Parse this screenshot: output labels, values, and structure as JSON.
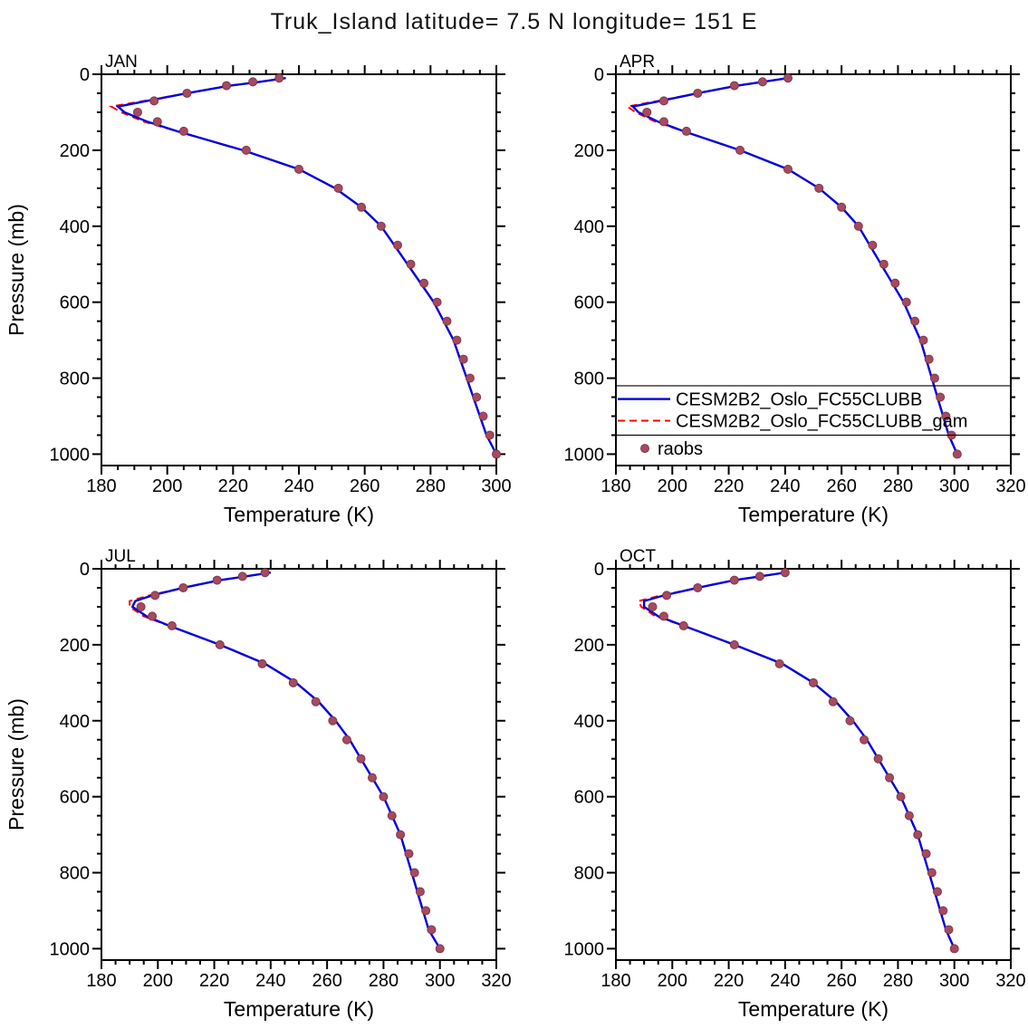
{
  "title": "Truk_Island   latitude= 7.5 N longitude= 151 E",
  "colors": {
    "model_solid": "#0000DC",
    "model_dashed": "#FF0000",
    "raobs": "#A64A5F",
    "raobs_edge": "#7E3748",
    "axis": "#000000"
  },
  "legend": {
    "entries": [
      {
        "label": "CESM2B2_Oslo_FC55CLUBB",
        "style": "solid"
      },
      {
        "label": "CESM2B2_Oslo_FC55CLUBB_gam",
        "style": "dashed"
      },
      {
        "label": "raobs",
        "style": "dot"
      }
    ]
  },
  "chart_data": [
    {
      "type": "line",
      "label": "JAN",
      "xlabel": "Temperature (K)",
      "ylabel": "Pressure (mb)",
      "xlim": [
        180,
        300
      ],
      "xticks": [
        180,
        200,
        220,
        240,
        260,
        280,
        300
      ],
      "ylim": [
        0,
        1030
      ],
      "yticks": [
        0,
        200,
        400,
        600,
        800,
        1000
      ],
      "has_legend": false,
      "levels_model": [
        10,
        20,
        30,
        50,
        70,
        85,
        100,
        125,
        150,
        175,
        200,
        250,
        300,
        350,
        400,
        450,
        500,
        550,
        600,
        650,
        700,
        750,
        800,
        850,
        900,
        950,
        1000
      ],
      "levels_raobs": [
        10,
        20,
        30,
        50,
        70,
        100,
        125,
        150,
        200,
        250,
        300,
        350,
        400,
        450,
        500,
        550,
        600,
        650,
        700,
        750,
        800,
        850,
        900,
        950,
        1000
      ],
      "series": {
        "model_solid": [
          236,
          228,
          219,
          206,
          194,
          185,
          187,
          194,
          203,
          213,
          223,
          240,
          251,
          259,
          265,
          269,
          273,
          277,
          281,
          284,
          287,
          289,
          291,
          293,
          295,
          297,
          300
        ],
        "model_dashed": [
          236,
          228,
          219,
          206,
          193,
          183,
          186,
          193,
          203,
          213,
          223,
          240,
          251,
          259,
          265,
          269,
          273,
          277,
          281,
          284,
          287,
          289,
          291,
          293,
          295,
          297,
          300
        ],
        "raobs": [
          234,
          226,
          218,
          206,
          196,
          191,
          197,
          205,
          224,
          240,
          252,
          259,
          265,
          270,
          274,
          278,
          282,
          285,
          288,
          290,
          292,
          294,
          296,
          298,
          300
        ]
      }
    },
    {
      "type": "line",
      "label": "APR",
      "xlabel": "Temperature (K)",
      "ylabel": "",
      "xlim": [
        180,
        320
      ],
      "xticks": [
        180,
        200,
        220,
        240,
        260,
        280,
        300,
        320
      ],
      "ylim": [
        0,
        1030
      ],
      "yticks": [
        0,
        200,
        400,
        600,
        800,
        1000
      ],
      "has_legend": true,
      "levels_model": [
        10,
        20,
        30,
        50,
        70,
        85,
        100,
        125,
        150,
        175,
        200,
        250,
        300,
        350,
        400,
        450,
        500,
        550,
        600,
        650,
        700,
        750,
        800,
        850,
        900,
        950,
        1000
      ],
      "levels_raobs": [
        10,
        20,
        30,
        50,
        70,
        100,
        125,
        150,
        200,
        250,
        300,
        350,
        400,
        450,
        500,
        550,
        600,
        650,
        700,
        750,
        800,
        850,
        900,
        950,
        1000
      ],
      "series": {
        "model_solid": [
          241,
          232,
          223,
          209,
          196,
          186,
          188,
          195,
          204,
          214,
          224,
          241,
          252,
          260,
          266,
          270,
          274,
          278,
          282,
          285,
          288,
          290,
          292,
          294,
          296,
          298,
          301
        ],
        "model_dashed": [
          241,
          232,
          223,
          209,
          195,
          184,
          187,
          194,
          204,
          214,
          224,
          241,
          252,
          260,
          266,
          270,
          274,
          278,
          282,
          285,
          288,
          290,
          292,
          294,
          296,
          298,
          301
        ],
        "raobs": [
          241,
          232,
          222,
          209,
          197,
          191,
          197,
          205,
          224,
          241,
          252,
          260,
          266,
          271,
          275,
          279,
          283,
          286,
          289,
          291,
          293,
          295,
          297,
          299,
          301
        ]
      }
    },
    {
      "type": "line",
      "label": "JUL",
      "xlabel": "Temperature (K)",
      "ylabel": "Pressure (mb)",
      "xlim": [
        180,
        320
      ],
      "xticks": [
        180,
        200,
        220,
        240,
        260,
        280,
        300,
        320
      ],
      "ylim": [
        0,
        1030
      ],
      "yticks": [
        0,
        200,
        400,
        600,
        800,
        1000
      ],
      "has_legend": false,
      "levels_model": [
        10,
        20,
        30,
        50,
        70,
        85,
        100,
        125,
        150,
        175,
        200,
        250,
        300,
        350,
        400,
        450,
        500,
        550,
        600,
        650,
        700,
        750,
        800,
        850,
        900,
        950,
        1000
      ],
      "levels_raobs": [
        10,
        20,
        30,
        50,
        70,
        100,
        125,
        150,
        200,
        250,
        300,
        350,
        400,
        450,
        500,
        550,
        600,
        650,
        700,
        750,
        800,
        850,
        900,
        950,
        1000
      ],
      "series": {
        "model_solid": [
          240,
          231,
          222,
          209,
          198,
          192,
          191,
          196,
          204,
          213,
          222,
          238,
          249,
          257,
          263,
          268,
          272,
          276,
          280,
          283,
          286,
          288,
          290,
          292,
          294,
          296,
          300
        ],
        "model_dashed": [
          240,
          231,
          222,
          209,
          197,
          190,
          190,
          195,
          204,
          213,
          222,
          238,
          249,
          257,
          263,
          268,
          272,
          276,
          280,
          283,
          286,
          288,
          290,
          292,
          294,
          296,
          300
        ],
        "raobs": [
          238,
          230,
          221,
          209,
          199,
          194,
          198,
          205,
          222,
          237,
          248,
          256,
          262,
          267,
          272,
          276,
          280,
          283,
          286,
          289,
          291,
          293,
          295,
          297,
          300
        ]
      }
    },
    {
      "type": "line",
      "label": "OCT",
      "xlabel": "Temperature (K)",
      "ylabel": "",
      "xlim": [
        180,
        320
      ],
      "xticks": [
        180,
        200,
        220,
        240,
        260,
        280,
        300,
        320
      ],
      "ylim": [
        0,
        1030
      ],
      "yticks": [
        0,
        200,
        400,
        600,
        800,
        1000
      ],
      "has_legend": false,
      "levels_model": [
        10,
        20,
        30,
        50,
        70,
        85,
        100,
        125,
        150,
        175,
        200,
        250,
        300,
        350,
        400,
        450,
        500,
        550,
        600,
        650,
        700,
        750,
        800,
        850,
        900,
        950,
        1000
      ],
      "levels_raobs": [
        10,
        20,
        30,
        50,
        70,
        100,
        125,
        150,
        200,
        250,
        300,
        350,
        400,
        450,
        500,
        550,
        600,
        650,
        700,
        750,
        800,
        850,
        900,
        950,
        1000
      ],
      "series": {
        "model_solid": [
          240,
          231,
          222,
          209,
          197,
          190,
          190,
          195,
          204,
          213,
          222,
          239,
          250,
          258,
          264,
          269,
          273,
          277,
          281,
          284,
          287,
          289,
          291,
          293,
          295,
          297,
          300
        ],
        "model_dashed": [
          240,
          231,
          222,
          209,
          196,
          188,
          189,
          194,
          204,
          213,
          222,
          239,
          250,
          258,
          264,
          269,
          273,
          277,
          281,
          284,
          287,
          289,
          291,
          293,
          295,
          297,
          300
        ],
        "raobs": [
          240,
          231,
          222,
          209,
          198,
          193,
          197,
          204,
          222,
          238,
          250,
          257,
          263,
          268,
          273,
          277,
          281,
          284,
          287,
          290,
          292,
          294,
          296,
          298,
          300
        ]
      }
    }
  ]
}
